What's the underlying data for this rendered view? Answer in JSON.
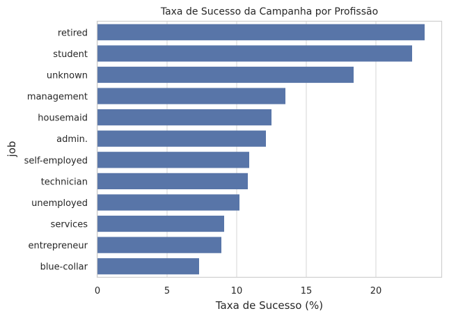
{
  "chart_data": {
    "type": "bar",
    "orientation": "horizontal",
    "title": "Taxa de Sucesso da Campanha por Profissão",
    "xlabel": "Taxa de Sucesso (%)",
    "ylabel": "job",
    "categories": [
      "retired",
      "student",
      "unknown",
      "management",
      "housemaid",
      "admin.",
      "self-employed",
      "technician",
      "unemployed",
      "services",
      "entrepreneur",
      "blue-collar"
    ],
    "values": [
      23.5,
      22.6,
      18.4,
      13.5,
      12.5,
      12.1,
      10.9,
      10.8,
      10.2,
      9.1,
      8.9,
      7.3
    ],
    "xlim": [
      0,
      24.7
    ],
    "xticks": [
      0,
      5,
      10,
      15,
      20
    ],
    "grid": true,
    "bar_color": "#5875a8"
  }
}
